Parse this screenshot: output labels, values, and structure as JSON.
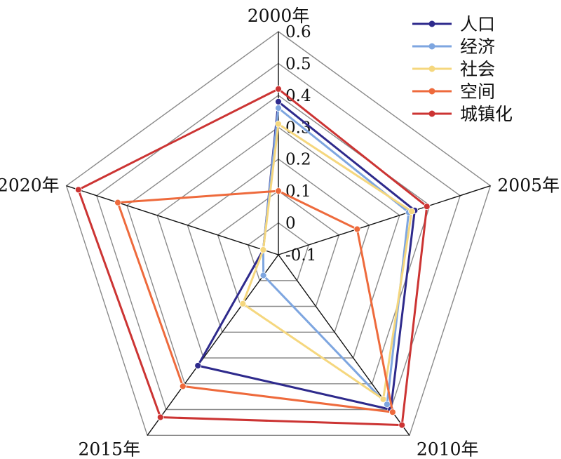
{
  "chart_data": {
    "type": "radar",
    "categories": [
      "2000年",
      "2005年",
      "2010年",
      "2015年",
      "2020年"
    ],
    "rlim": [
      -0.1,
      0.6
    ],
    "ticks": [
      "-0.1",
      "0",
      "0.1",
      "0.2",
      "0.3",
      "0.4",
      "0.5",
      "0.6"
    ],
    "grid": true,
    "legend_position": "top-right",
    "series": [
      {
        "name": "人口",
        "color": "#2e2a8c",
        "values": [
          0.38,
          0.35,
          0.5,
          0.33,
          -0.05
        ]
      },
      {
        "name": "经济",
        "color": "#7ea6e0",
        "values": [
          0.36,
          0.33,
          0.48,
          -0.02,
          -0.05
        ]
      },
      {
        "name": "社会",
        "color": "#f5d77e",
        "values": [
          0.31,
          0.34,
          0.46,
          0.09,
          -0.05
        ]
      },
      {
        "name": "空间",
        "color": "#ee6a3c",
        "values": [
          0.1,
          0.16,
          0.51,
          0.41,
          0.43
        ]
      },
      {
        "name": "城镇化",
        "color": "#cc3433",
        "values": [
          0.42,
          0.39,
          0.56,
          0.53,
          0.56
        ]
      }
    ]
  }
}
